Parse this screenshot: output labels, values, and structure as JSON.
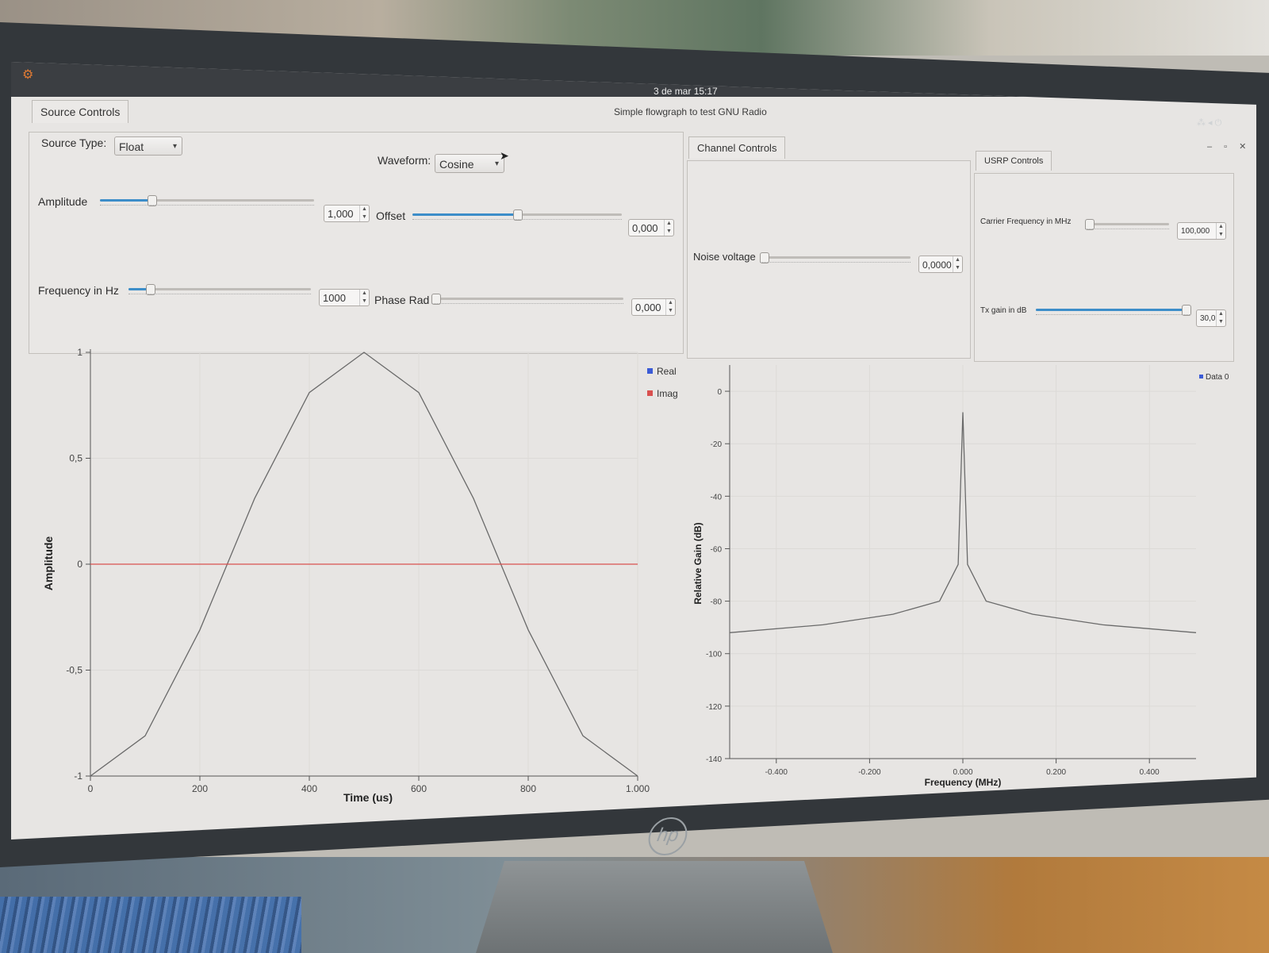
{
  "topbar": {
    "clock": "3 de mar  15:17"
  },
  "window": {
    "title": "Simple flowgraph to test GNU Radio"
  },
  "tabs": {
    "source": "Source Controls",
    "channel": "Channel Controls",
    "usrp": "USRP Controls"
  },
  "source_controls": {
    "source_type_label": "Source Type:",
    "source_type_value": "Float",
    "waveform_label": "Waveform:",
    "waveform_value": "Cosine",
    "amplitude_label": "Amplitude",
    "amplitude_value": "1,000",
    "amplitude_level": 0.23,
    "offset_label": "Offset",
    "offset_value": "0,000",
    "offset_level": 0.5,
    "frequency_label": "Frequency in Hz",
    "frequency_value": "1000",
    "frequency_level": 0.1,
    "phase_label": "Phase Rad",
    "phase_value": "0,000",
    "phase_level": 0.0
  },
  "channel_controls": {
    "noise_label": "Noise voltage",
    "noise_value": "0,0000",
    "noise_level": 0.0
  },
  "usrp_controls": {
    "carrier_label": "Carrier Frequency in MHz",
    "carrier_value": "100,000",
    "carrier_level": 0.0,
    "txgain_label": "Tx gain in dB",
    "txgain_value": "30,0",
    "txgain_level": 1.0
  },
  "colors": {
    "real": "#3b5bd6",
    "imag": "#d9504f",
    "data0": "#3b5bd6",
    "slider_fill": "#3d8ec9"
  },
  "chart_data": [
    {
      "type": "line",
      "xlabel": "Time (us)",
      "ylabel": "Amplitude",
      "xlim": [
        0,
        1000
      ],
      "ylim": [
        -1,
        1
      ],
      "x_ticks": [
        "0",
        "200",
        "400",
        "600",
        "800",
        "1.000"
      ],
      "y_ticks": [
        "1",
        "0,5",
        "0",
        "-0,5",
        "-1"
      ],
      "grid": true,
      "legend": "top-right",
      "series": [
        {
          "name": "Real",
          "x": [
            0,
            100,
            200,
            300,
            400,
            500,
            600,
            700,
            800,
            900,
            1000
          ],
          "values": [
            -1.0,
            -0.81,
            -0.31,
            0.31,
            0.81,
            1.0,
            0.81,
            0.31,
            -0.31,
            -0.81,
            -1.0
          ]
        },
        {
          "name": "Imag",
          "x": [
            0,
            1000
          ],
          "values": [
            0,
            0
          ]
        }
      ]
    },
    {
      "type": "line",
      "xlabel": "Frequency (MHz)",
      "ylabel": "Relative Gain (dB)",
      "xlim": [
        -0.5,
        0.5
      ],
      "ylim": [
        -140,
        10
      ],
      "x_ticks": [
        "-0.400",
        "-0.200",
        "0.000",
        "0.200",
        "0.400"
      ],
      "y_ticks": [
        "0",
        "-20",
        "-40",
        "-60",
        "-80",
        "-100",
        "-120",
        "-140"
      ],
      "grid": true,
      "legend": "top-right",
      "series": [
        {
          "name": "Data 0",
          "x": [
            -0.5,
            -0.3,
            -0.15,
            -0.05,
            -0.01,
            0.0,
            0.01,
            0.05,
            0.15,
            0.3,
            0.5
          ],
          "values": [
            -92,
            -89,
            -85,
            -80,
            -66,
            -8,
            -66,
            -80,
            -85,
            -89,
            -92
          ]
        }
      ]
    }
  ]
}
